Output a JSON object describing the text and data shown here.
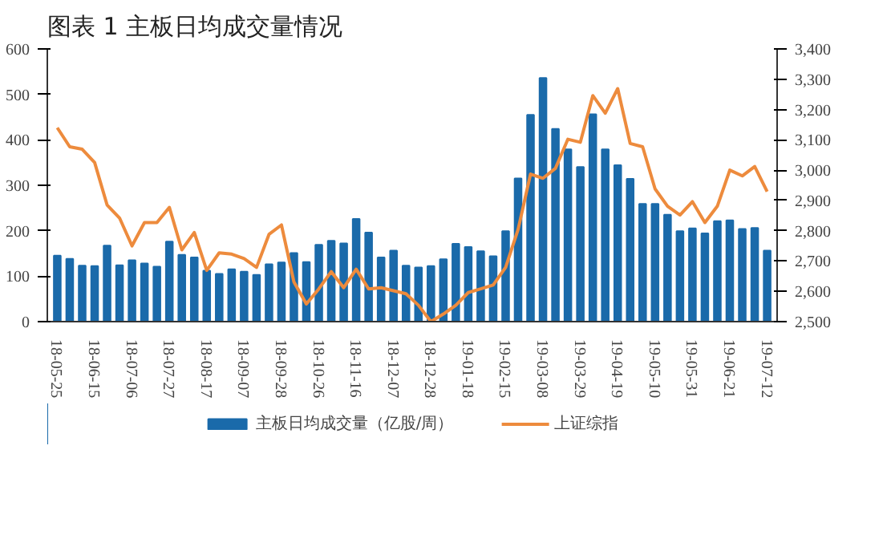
{
  "chart_data": {
    "type": "bar",
    "title": "图表 1 主板日均成交量情况",
    "categories": [
      "18-05-25",
      null,
      null,
      "18-06-15",
      null,
      null,
      "18-07-06",
      null,
      null,
      "18-07-27",
      null,
      null,
      "18-08-17",
      null,
      null,
      "18-09-07",
      null,
      null,
      "18-09-28",
      null,
      null,
      "18-10-26",
      null,
      null,
      "18-11-16",
      null,
      null,
      "18-12-07",
      null,
      null,
      "18-12-28",
      null,
      null,
      "19-01-18",
      null,
      null,
      "19-02-15",
      null,
      null,
      "19-03-08",
      null,
      null,
      "19-03-29",
      null,
      null,
      "19-04-19",
      null,
      null,
      "19-05-10",
      null,
      null,
      "19-05-31",
      null,
      null,
      "19-06-21",
      null,
      null,
      "19-07-12"
    ],
    "series": [
      {
        "name": "主板日均成交量（亿股/周）",
        "color": "#1a6aaa",
        "values": [
          145,
          138,
          123,
          122,
          167,
          124,
          135,
          128,
          121,
          176,
          147,
          141,
          112,
          105,
          115,
          110,
          103,
          126,
          130,
          151,
          131,
          169,
          178,
          172,
          226,
          196,
          141,
          156,
          123,
          119,
          122,
          137,
          171,
          164,
          155,
          144,
          199,
          315,
          455,
          536,
          424,
          379,
          340,
          456,
          379,
          344,
          314,
          259,
          259,
          235,
          199,
          205,
          194,
          221,
          223,
          204,
          206,
          156
        ]
      },
      {
        "name": "上证综指",
        "type": "line",
        "axis": "y2",
        "color": "#ed8b3d",
        "values": [
          3140,
          3077,
          3069,
          3025,
          2885,
          2842,
          2750,
          2827,
          2827,
          2877,
          2737,
          2794,
          2669,
          2727,
          2723,
          2708,
          2679,
          2788,
          2819,
          2631,
          2558,
          2608,
          2665,
          2612,
          2673,
          2608,
          2612,
          2602,
          2592,
          2554,
          2500,
          2525,
          2554,
          2596,
          2608,
          2621,
          2679,
          2804,
          2987,
          2973,
          3006,
          3102,
          3092,
          3246,
          3188,
          3269,
          3088,
          3077,
          2938,
          2881,
          2852,
          2896,
          2827,
          2881,
          3000,
          2981,
          3012,
          2929
        ]
      }
    ],
    "ylim": [
      0,
      600
    ],
    "yticks": [
      0,
      100,
      200,
      300,
      400,
      500,
      600
    ],
    "y2lim": [
      2500,
      3400
    ],
    "y2ticks": [
      {
        "value": 2500,
        "label": "2,500"
      },
      {
        "value": 2600,
        "label": "2,600"
      },
      {
        "value": 2700,
        "label": "2,700"
      },
      {
        "value": 2800,
        "label": "2,800"
      },
      {
        "value": 2900,
        "label": "2,900"
      },
      {
        "value": 3000,
        "label": "3,000"
      },
      {
        "value": 3100,
        "label": "3,100"
      },
      {
        "value": 3200,
        "label": "3,200"
      },
      {
        "value": 3300,
        "label": "3,300"
      },
      {
        "value": 3400,
        "label": "3,400"
      }
    ],
    "legend": "bottom",
    "grid": false
  }
}
